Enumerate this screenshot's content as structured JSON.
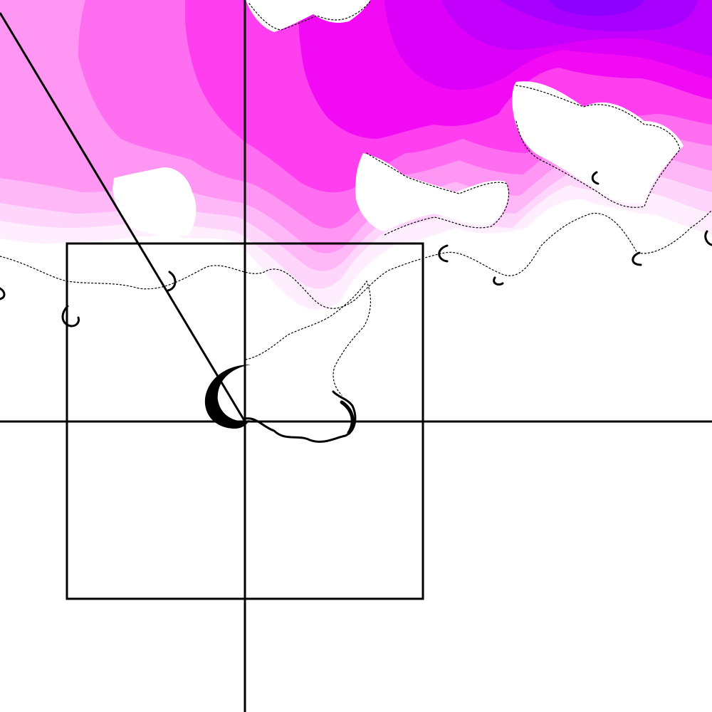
{
  "colors": {
    "background": "#ffffff",
    "ink": "#000000",
    "palette": [
      "#ffeefd",
      "#ffd6fb",
      "#ffb8f7",
      "#ff96f3",
      "#ff6ef0",
      "#ff3ef0",
      "#f20af5",
      "#dc00f8",
      "#c200fb",
      "#a800ff",
      "#8e00ff"
    ]
  },
  "icons": {
    "fractal": "fractal-region-icon",
    "guides": "crosshair-guides-icon"
  }
}
